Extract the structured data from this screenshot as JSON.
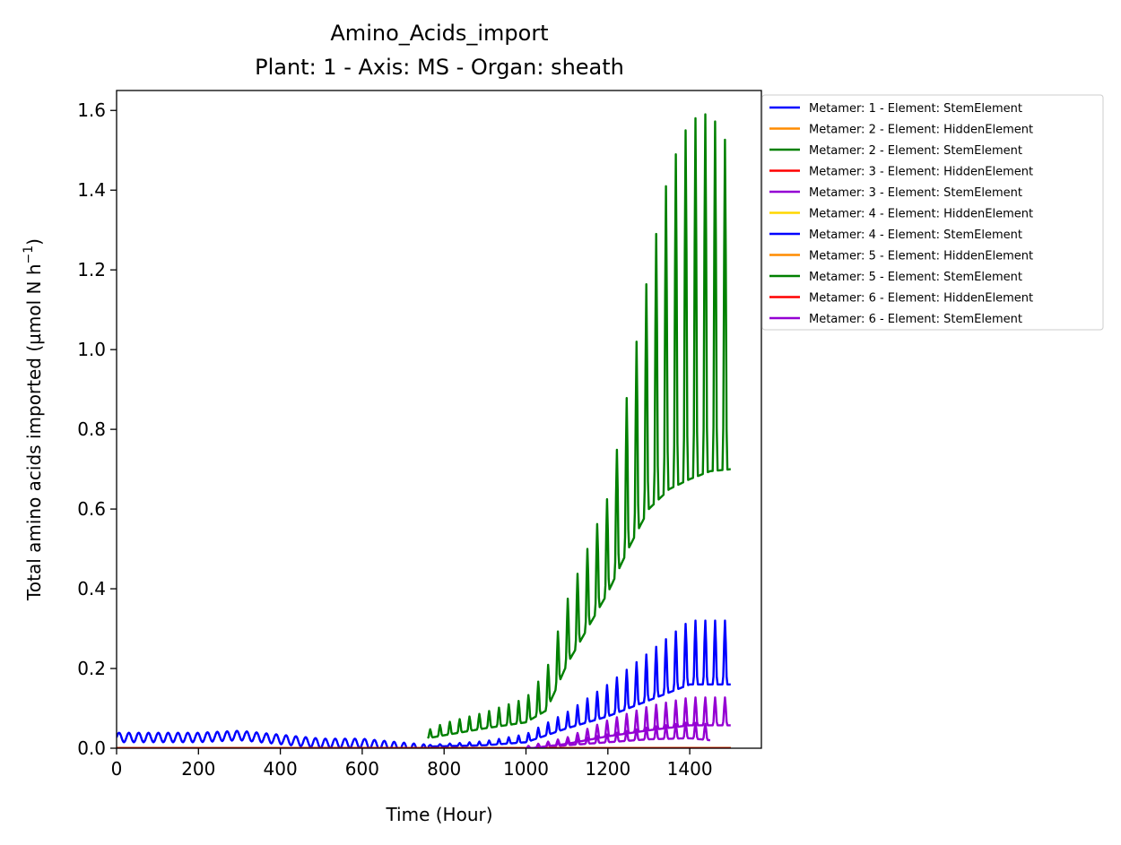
{
  "chart_data": {
    "type": "line",
    "title": "Amino_Acids_import",
    "subtitle": "Plant: 1 - Axis: MS - Organ: sheath",
    "xlabel": "Time (Hour)",
    "ylabel": "Total amino acids imported (µmol N h",
    "ylabel_sup": "−1",
    "ylabel_end": ")",
    "xlim": [
      0,
      1575
    ],
    "ylim": [
      0,
      1.65
    ],
    "xticks": [
      0,
      200,
      400,
      600,
      800,
      1000,
      1200,
      1400
    ],
    "xtick_labels": [
      "0",
      "200",
      "400",
      "600",
      "800",
      "1000",
      "1200",
      "1400"
    ],
    "yticks": [
      0.0,
      0.2,
      0.4,
      0.6,
      0.8,
      1.0,
      1.2,
      1.4,
      1.6
    ],
    "ytick_labels": [
      "0.0",
      "0.2",
      "0.4",
      "0.6",
      "0.8",
      "1.0",
      "1.2",
      "1.4",
      "1.6"
    ],
    "grid": false,
    "legend_position": "outside-top-right",
    "series": [
      {
        "name": "Metamer: 1 - Element: StemElement",
        "color": "#0000ff",
        "x": [
          0,
          100,
          200,
          300,
          400,
          500,
          600,
          700,
          760
        ],
        "y": [
          0.03,
          0.03,
          0.03,
          0.035,
          0.025,
          0.015,
          0.015,
          0.005,
          0.0
        ]
      },
      {
        "name": "Metamer: 2 - Element: HiddenElement",
        "color": "#ff8c00",
        "x": [
          0,
          1500
        ],
        "y": [
          0,
          0
        ]
      },
      {
        "name": "Metamer: 2 - Element: StemElement",
        "color": "#008000",
        "x": [
          760,
          800,
          900,
          1000,
          1050,
          1100,
          1150,
          1200,
          1250,
          1300,
          1350,
          1400,
          1450,
          1500
        ],
        "y": [
          0.03,
          0.04,
          0.06,
          0.08,
          0.12,
          0.25,
          0.35,
          0.45,
          0.6,
          0.75,
          0.85,
          0.9,
          0.92,
          0.9
        ],
        "amp": [
          0.01,
          0.015,
          0.02,
          0.03,
          0.05,
          0.08,
          0.1,
          0.12,
          0.2,
          0.3,
          0.4,
          0.45,
          0.45,
          0.4
        ]
      },
      {
        "name": "Metamer: 3 - Element: HiddenElement",
        "color": "#ff0000",
        "x": [
          0,
          1500
        ],
        "y": [
          0,
          0
        ]
      },
      {
        "name": "Metamer: 3 - Element: StemElement",
        "color": "#9400d3",
        "x": [
          1000,
          1100,
          1200,
          1300,
          1400,
          1450
        ],
        "y": [
          0.0,
          0.01,
          0.02,
          0.03,
          0.035,
          0.03
        ],
        "amp": [
          0.003,
          0.005,
          0.01,
          0.015,
          0.02,
          0.02
        ]
      },
      {
        "name": "Metamer: 4 - Element: HiddenElement",
        "color": "#ffd700",
        "x": [
          0,
          1500
        ],
        "y": [
          0,
          0
        ]
      },
      {
        "name": "Metamer: 4 - Element: StemElement",
        "color": "#0000ff",
        "x": [
          760,
          900,
          1000,
          1100,
          1200,
          1300,
          1400,
          1500
        ],
        "y": [
          0.005,
          0.01,
          0.02,
          0.06,
          0.1,
          0.15,
          0.2,
          0.2
        ],
        "amp": [
          0.002,
          0.005,
          0.01,
          0.02,
          0.04,
          0.06,
          0.08,
          0.08
        ]
      },
      {
        "name": "Metamer: 5 - Element: HiddenElement",
        "color": "#ff8c00",
        "x": [
          0,
          1500
        ],
        "y": [
          0,
          0
        ]
      },
      {
        "name": "Metamer: 5 - Element: StemElement",
        "color": "#008000",
        "x": [
          0,
          1500
        ],
        "y": [
          0,
          0
        ]
      },
      {
        "name": "Metamer: 6 - Element: HiddenElement",
        "color": "#ff0000",
        "x": [
          0,
          1500
        ],
        "y": [
          0,
          0
        ]
      },
      {
        "name": "Metamer: 6 - Element: StemElement",
        "color": "#9400d3",
        "x": [
          1000,
          1100,
          1200,
          1300,
          1400,
          1500
        ],
        "y": [
          0.0,
          0.015,
          0.04,
          0.06,
          0.075,
          0.075
        ],
        "amp": [
          0.003,
          0.008,
          0.02,
          0.03,
          0.035,
          0.035
        ]
      }
    ]
  }
}
